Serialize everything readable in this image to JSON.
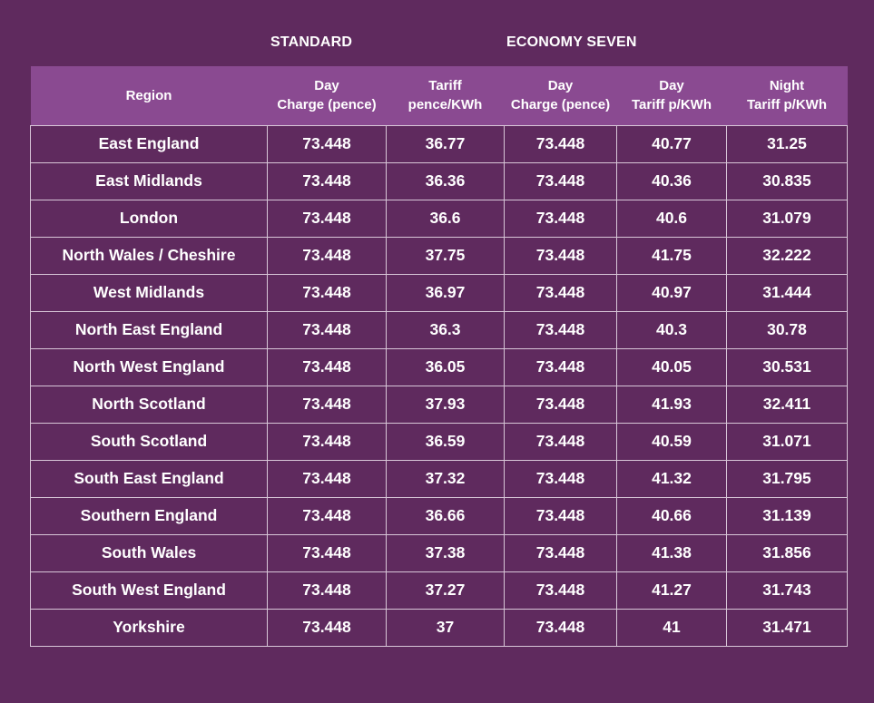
{
  "groups": {
    "standard": "STANDARD",
    "economy_seven": "ECONOMY SEVEN"
  },
  "headers": [
    {
      "lines": [
        "Region"
      ]
    },
    {
      "lines": [
        "Day",
        "Charge (pence)"
      ]
    },
    {
      "lines": [
        "Tariff",
        "pence/KWh"
      ]
    },
    {
      "lines": [
        "Day",
        "Charge (pence)"
      ]
    },
    {
      "lines": [
        "Day",
        "Tariff p/KWh"
      ]
    },
    {
      "lines": [
        "Night",
        "Tariff p/KWh"
      ]
    }
  ],
  "rows": [
    {
      "region": "East England",
      "std_day_charge": "73.448",
      "std_tariff": "36.77",
      "e7_day_charge": "73.448",
      "e7_day_tariff": "40.77",
      "e7_night_tariff": "31.25"
    },
    {
      "region": "East Midlands",
      "std_day_charge": "73.448",
      "std_tariff": "36.36",
      "e7_day_charge": "73.448",
      "e7_day_tariff": "40.36",
      "e7_night_tariff": "30.835"
    },
    {
      "region": "London",
      "std_day_charge": "73.448",
      "std_tariff": "36.6",
      "e7_day_charge": "73.448",
      "e7_day_tariff": "40.6",
      "e7_night_tariff": "31.079"
    },
    {
      "region": "North Wales / Cheshire",
      "std_day_charge": "73.448",
      "std_tariff": "37.75",
      "e7_day_charge": "73.448",
      "e7_day_tariff": "41.75",
      "e7_night_tariff": "32.222"
    },
    {
      "region": "West Midlands",
      "std_day_charge": "73.448",
      "std_tariff": "36.97",
      "e7_day_charge": "73.448",
      "e7_day_tariff": "40.97",
      "e7_night_tariff": "31.444"
    },
    {
      "region": "North East England",
      "std_day_charge": "73.448",
      "std_tariff": "36.3",
      "e7_day_charge": "73.448",
      "e7_day_tariff": "40.3",
      "e7_night_tariff": "30.78"
    },
    {
      "region": "North West England",
      "std_day_charge": "73.448",
      "std_tariff": "36.05",
      "e7_day_charge": "73.448",
      "e7_day_tariff": "40.05",
      "e7_night_tariff": "30.531"
    },
    {
      "region": "North Scotland",
      "std_day_charge": "73.448",
      "std_tariff": "37.93",
      "e7_day_charge": "73.448",
      "e7_day_tariff": "41.93",
      "e7_night_tariff": "32.411"
    },
    {
      "region": "South Scotland",
      "std_day_charge": "73.448",
      "std_tariff": "36.59",
      "e7_day_charge": "73.448",
      "e7_day_tariff": "40.59",
      "e7_night_tariff": "31.071"
    },
    {
      "region": "South East England",
      "std_day_charge": "73.448",
      "std_tariff": "37.32",
      "e7_day_charge": "73.448",
      "e7_day_tariff": "41.32",
      "e7_night_tariff": "31.795"
    },
    {
      "region": "Southern England",
      "std_day_charge": "73.448",
      "std_tariff": "36.66",
      "e7_day_charge": "73.448",
      "e7_day_tariff": "40.66",
      "e7_night_tariff": "31.139"
    },
    {
      "region": "South Wales",
      "std_day_charge": "73.448",
      "std_tariff": "37.38",
      "e7_day_charge": "73.448",
      "e7_day_tariff": "41.38",
      "e7_night_tariff": "31.856"
    },
    {
      "region": "South West England",
      "std_day_charge": "73.448",
      "std_tariff": "37.27",
      "e7_day_charge": "73.448",
      "e7_day_tariff": "41.27",
      "e7_night_tariff": "31.743"
    },
    {
      "region": "Yorkshire",
      "std_day_charge": "73.448",
      "std_tariff": "37",
      "e7_day_charge": "73.448",
      "e7_day_tariff": "41",
      "e7_night_tariff": "31.471"
    }
  ],
  "colors": {
    "background": "#5f2a5e",
    "header_background": "#8a4a91",
    "grid_lines": "#d8c6d8",
    "text": "#ffffff"
  }
}
